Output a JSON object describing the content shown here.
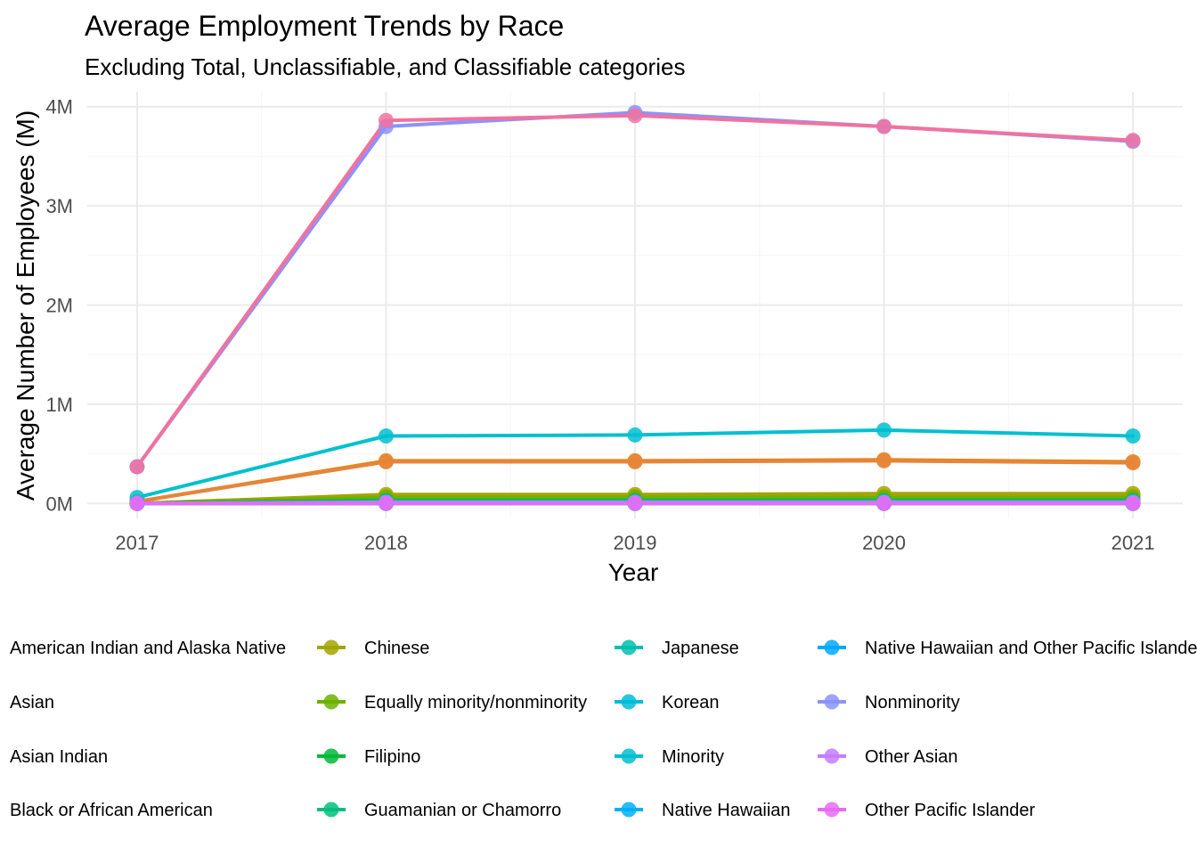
{
  "chart_data": {
    "type": "line",
    "title": "Average Employment Trends by Race",
    "subtitle": "Excluding Total, Unclassifiable, and Classifiable categories",
    "xlabel": "Year",
    "ylabel": "Average Number of Employees (M)",
    "x": [
      2017,
      2018,
      2019,
      2020,
      2021
    ],
    "x_tick_labels": [
      "2017",
      "2018",
      "2019",
      "2020",
      "2021"
    ],
    "ylim": [
      -0.15,
      4.15
    ],
    "y_ticks": [
      0,
      1,
      2,
      3,
      4
    ],
    "y_tick_labels": [
      "0M",
      "1M",
      "2M",
      "3M",
      "4M"
    ],
    "grid": true,
    "legend_position": "bottom",
    "series": [
      {
        "name": "American Indian and Alaska Native",
        "color": "#F8766D",
        "values": [
          0.0,
          0.01,
          0.01,
          0.01,
          0.01
        ],
        "has_key": false
      },
      {
        "name": "Asian",
        "color": "#E58700",
        "values": [
          0.02,
          0.43,
          0.43,
          0.44,
          0.42
        ],
        "has_key": false
      },
      {
        "name": "Asian Indian",
        "color": "#C99800",
        "values": [
          0.0,
          0.07,
          0.07,
          0.07,
          0.07
        ],
        "has_key": false
      },
      {
        "name": "Black or African American",
        "color": "#E6843D",
        "values": [
          0.02,
          0.42,
          0.42,
          0.43,
          0.41
        ],
        "has_key": false
      },
      {
        "name": "Chinese",
        "color": "#A3A500",
        "values": [
          0.0,
          0.09,
          0.09,
          0.1,
          0.1
        ],
        "has_key": true
      },
      {
        "name": "Equally minority/nonminority",
        "color": "#6BB100",
        "values": [
          0.0,
          0.06,
          0.06,
          0.06,
          0.06
        ],
        "has_key": true
      },
      {
        "name": "Filipino",
        "color": "#00BA38",
        "values": [
          0.0,
          0.03,
          0.03,
          0.03,
          0.03
        ],
        "has_key": true
      },
      {
        "name": "Guamanian or Chamorro",
        "color": "#00BF7D",
        "values": [
          0.0,
          0.0,
          0.0,
          0.0,
          0.0
        ],
        "has_key": true
      },
      {
        "name": "Japanese",
        "color": "#00C0AF",
        "values": [
          0.0,
          0.01,
          0.01,
          0.01,
          0.01
        ],
        "has_key": true
      },
      {
        "name": "Korean",
        "color": "#00BCD8",
        "values": [
          0.0,
          0.02,
          0.02,
          0.02,
          0.02
        ],
        "has_key": true
      },
      {
        "name": "Minority",
        "color": "#00C0D0",
        "values": [
          0.06,
          0.68,
          0.69,
          0.74,
          0.68
        ],
        "has_key": true
      },
      {
        "name": "Native Hawaiian",
        "color": "#00B0F6",
        "values": [
          0.0,
          0.0,
          0.0,
          0.0,
          0.0
        ],
        "has_key": true
      },
      {
        "name": "Native Hawaiian and Other Pacific Islander",
        "color": "#00A9FF",
        "values": [
          0.0,
          0.0,
          0.0,
          0.0,
          0.0
        ],
        "has_key": true
      },
      {
        "name": "Nonminority",
        "color": "#8B93FF",
        "values": [
          0.37,
          3.8,
          3.94,
          3.8,
          3.65
        ],
        "has_key": true
      },
      {
        "name": "Other Asian",
        "color": "#C77CFF",
        "values": [
          0.0,
          0.01,
          0.01,
          0.01,
          0.01
        ],
        "has_key": true
      },
      {
        "name": "Other Pacific Islander",
        "color": "#E76BF3",
        "values": [
          0.0,
          0.0,
          0.0,
          0.0,
          0.0
        ],
        "has_key": true
      },
      {
        "name": "",
        "color": "#F2729E",
        "values": [
          0.37,
          3.86,
          3.91,
          3.8,
          3.66
        ],
        "has_key": false
      }
    ]
  }
}
